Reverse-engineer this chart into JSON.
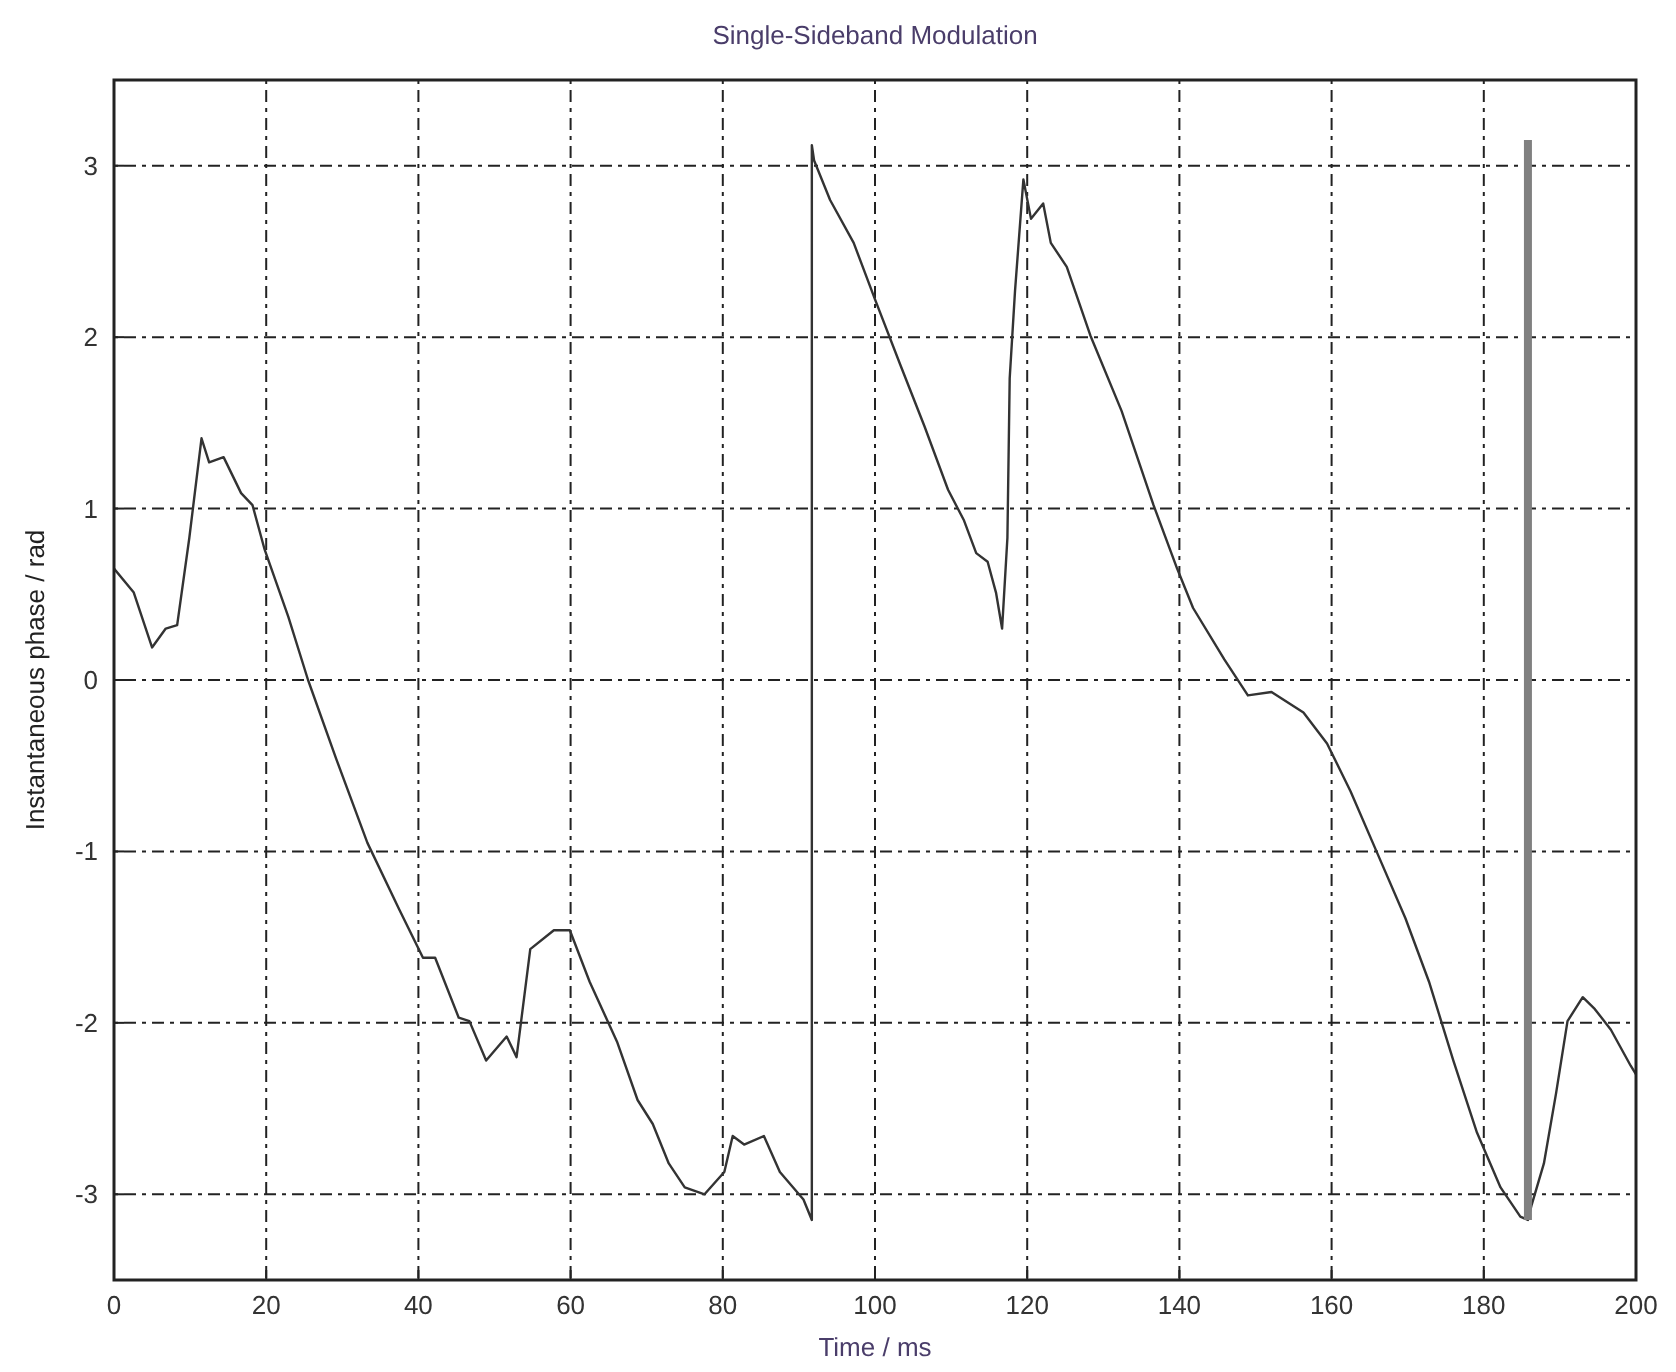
{
  "chart_data": {
    "type": "line",
    "title": "Single-Sideband Modulation",
    "xlabel": "Time / ms",
    "ylabel": "Instantaneous phase / rad",
    "xlim": [
      0,
      200
    ],
    "ylim": [
      -3.5,
      3.5
    ],
    "xticks": [
      0,
      20,
      40,
      60,
      80,
      100,
      120,
      140,
      160,
      180,
      200
    ],
    "yticks": [
      -3,
      -2,
      -1,
      0,
      1,
      2,
      3
    ],
    "grid": true,
    "line_style": "solid",
    "series": [
      {
        "color": "#333333",
        "x": [
          0,
          2.6,
          5,
          6.8,
          8.3,
          9.9,
          11.5,
          12.5,
          14.4,
          16.7,
          18.2,
          19.8,
          22.9,
          25.5,
          29.2,
          33.3,
          37.5,
          40.6,
          42.2,
          45.3,
          46.7,
          48.9,
          51.6,
          52.9,
          54.7,
          57.8,
          59.9,
          62.5,
          66.1,
          68.8,
          70.8,
          72.9,
          75,
          77.6,
          80.2,
          81.3,
          82.8,
          85.4,
          87.5,
          90.6,
          91.7,
          91.7,
          92,
          94.1,
          97.2,
          100,
          103.4,
          106.5,
          109.6,
          111.7,
          113.3,
          114.8,
          115.9,
          116.7,
          117.4,
          117.7,
          118.4,
          119.5,
          120.5,
          122.1,
          123.1,
          125.2,
          128.3,
          132.4,
          136.6,
          139.7,
          141.8,
          145.9,
          149,
          152.1,
          156.3,
          159.4,
          162.5,
          166.1,
          169.7,
          172.8,
          176,
          179.1,
          182.2,
          184.8,
          185.8,
          186.3,
          187.9,
          189.5,
          191,
          193,
          194.6,
          196.7,
          199.3,
          200
        ],
        "values": [
          0.65,
          0.51,
          0.19,
          0.3,
          0.32,
          0.83,
          1.41,
          1.27,
          1.3,
          1.09,
          1.02,
          0.76,
          0.37,
          0,
          -0.46,
          -0.95,
          -1.34,
          -1.62,
          -1.62,
          -1.97,
          -1.99,
          -2.22,
          -2.08,
          -2.2,
          -1.57,
          -1.46,
          -1.46,
          -1.76,
          -2.11,
          -2.45,
          -2.59,
          -2.82,
          -2.96,
          -3.0,
          -2.87,
          -2.66,
          -2.71,
          -2.66,
          -2.87,
          -3.03,
          -3.15,
          3.12,
          3.03,
          2.8,
          2.55,
          2.22,
          1.83,
          1.48,
          1.11,
          0.93,
          0.74,
          0.69,
          0.51,
          0.3,
          0.83,
          1.76,
          2.27,
          2.92,
          2.69,
          2.78,
          2.55,
          2.41,
          2.01,
          1.57,
          1.02,
          0.65,
          0.42,
          0.12,
          -0.09,
          -0.07,
          -0.19,
          -0.37,
          -0.65,
          -1.02,
          -1.39,
          -1.76,
          -2.22,
          -2.64,
          -2.96,
          -3.13,
          -3.15,
          -3.06,
          -2.82,
          -2.41,
          -1.99,
          -1.85,
          -1.92,
          -2.04,
          -2.25,
          -2.3
        ]
      },
      {
        "color": "#808080",
        "x": [
          185.8,
          185.8
        ],
        "values": [
          -3.15,
          3.15
        ]
      }
    ]
  }
}
